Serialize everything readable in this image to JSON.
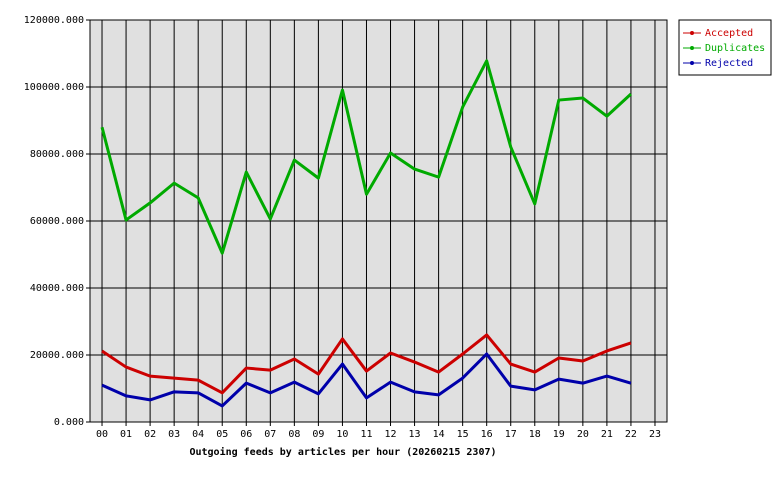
{
  "chart_data": {
    "type": "line",
    "x_label": "Outgoing feeds by articles per hour (20260215 2307)",
    "categories": [
      "00",
      "01",
      "02",
      "03",
      "04",
      "05",
      "06",
      "07",
      "08",
      "09",
      "10",
      "11",
      "12",
      "13",
      "14",
      "15",
      "16",
      "17",
      "18",
      "19",
      "20",
      "21",
      "22",
      "23"
    ],
    "series": [
      {
        "name": "Accepted",
        "color": "#cc0000",
        "values": [
          21200,
          16400,
          13700,
          13100,
          12500,
          8700,
          16100,
          15500,
          18800,
          14300,
          24800,
          15200,
          20600,
          17900,
          14900,
          20300,
          26000,
          17300,
          14900,
          19100,
          18200,
          21200,
          23600,
          null
        ]
      },
      {
        "name": "Duplicates",
        "color": "#00aa00",
        "values": [
          88000,
          60300,
          65400,
          71300,
          66900,
          50400,
          74600,
          60600,
          78200,
          72800,
          99100,
          68000,
          80300,
          75500,
          73100,
          94000,
          107800,
          82100,
          65100,
          96100,
          96700,
          91300,
          97900,
          null
        ]
      },
      {
        "name": "Rejected",
        "color": "#0000aa",
        "values": [
          11000,
          7800,
          6600,
          9000,
          8700,
          4800,
          11600,
          8700,
          11900,
          8400,
          17300,
          7200,
          11900,
          9000,
          8100,
          13100,
          20300,
          10700,
          9600,
          12800,
          11600,
          13700,
          11600,
          null
        ]
      }
    ],
    "ylim": [
      0,
      120000
    ],
    "yticks": [
      {
        "value": 0,
        "label": "0.000"
      },
      {
        "value": 20000,
        "label": "20000.000"
      },
      {
        "value": 40000,
        "label": "40000.000"
      },
      {
        "value": 60000,
        "label": "60000.000"
      },
      {
        "value": 80000,
        "label": "80000.000"
      },
      {
        "value": 100000,
        "label": "100000.000"
      },
      {
        "value": 120000,
        "label": "120000.000"
      }
    ],
    "grid": true,
    "legend_position": "top-right"
  }
}
